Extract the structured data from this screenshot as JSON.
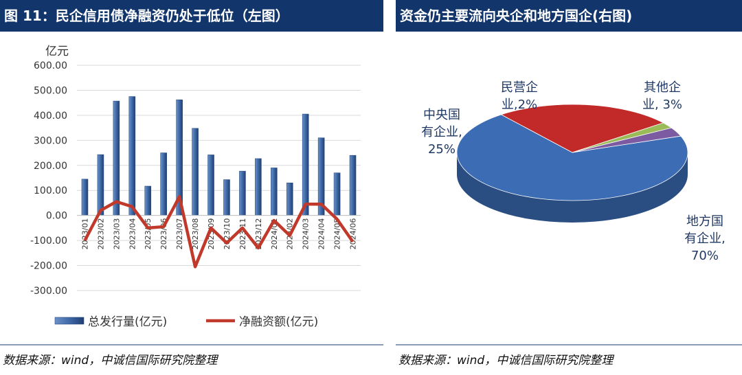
{
  "left": {
    "title": "图 11：民企信用债净融资仍处于低位（左图）",
    "source": "数据来源：wind，中诚信国际研究院整理"
  },
  "right": {
    "title": "资金仍主要流向央企和地方国企(右图)",
    "source": "数据来源：wind，中诚信国际研究院整理"
  },
  "colors": {
    "title_bg": "#12356b",
    "bar": "#3f69a6",
    "line": "#c0392b",
    "pie_local": "#3c6db4",
    "pie_central": "#c22a2a",
    "pie_private": "#9bbb59",
    "pie_other": "#7c5ba3",
    "pie_label": "#1f3864"
  },
  "chart_data": [
    {
      "type": "bar",
      "unit_label": "亿元",
      "categories": [
        "2023/01",
        "2023/02",
        "2023/03",
        "2023/04",
        "2023/05",
        "2023/06",
        "2023/07",
        "2023/08",
        "2023/09",
        "2023/10",
        "2023/11",
        "2023/12",
        "2024/01",
        "2024/02",
        "2024/03",
        "2024/04",
        "2024/05",
        "2024/06"
      ],
      "series": [
        {
          "name": "总发行量(亿元)",
          "type": "bar",
          "values": [
            145,
            243,
            457,
            475,
            117,
            250,
            462,
            348,
            242,
            143,
            177,
            227,
            190,
            130,
            405,
            310,
            170,
            240
          ]
        },
        {
          "name": "净融资额(亿元)",
          "type": "line",
          "values": [
            -100,
            20,
            55,
            35,
            -50,
            -45,
            75,
            -205,
            -50,
            -110,
            -50,
            -130,
            -20,
            -80,
            45,
            45,
            -15,
            -105
          ]
        }
      ],
      "ylim": [
        -300,
        600
      ],
      "yticks": [
        "600.00",
        "500.00",
        "400.00",
        "300.00",
        "200.00",
        "100.00",
        "0.00",
        "-100.00",
        "-200.00",
        "-300.00"
      ],
      "grid": true,
      "legend": "bottom"
    },
    {
      "type": "pie",
      "slices": [
        {
          "label": "地方国有企业,70%",
          "value": 70
        },
        {
          "label": "中央国有企业,25%",
          "value": 25
        },
        {
          "label": "民营企业,2%",
          "value": 2
        },
        {
          "label": "其他企业, 3%",
          "value": 3
        }
      ]
    }
  ]
}
